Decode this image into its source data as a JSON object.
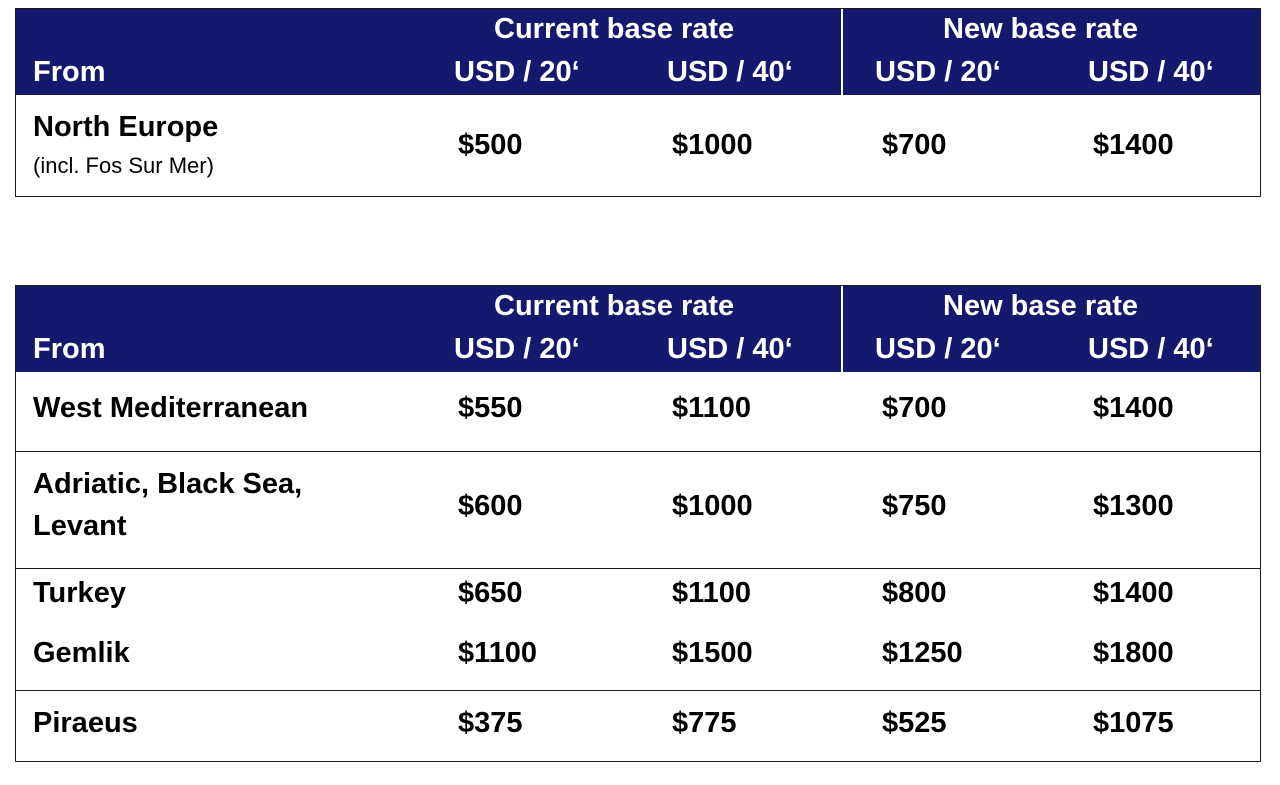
{
  "header": {
    "current_group": "Current base rate",
    "new_group": "New base rate",
    "from": "From",
    "usd20": "USD / 20‘",
    "usd40": "USD / 40‘"
  },
  "table1": {
    "rows": [
      {
        "name": "North Europe",
        "sub": "(incl. Fos Sur Mer)",
        "cur20": "$500",
        "cur40": "$1000",
        "new20": "$700",
        "new40": "$1400"
      }
    ]
  },
  "table2": {
    "rows": [
      {
        "name": "West Mediterranean",
        "cur20": "$550",
        "cur40": "$1100",
        "new20": "$700",
        "new40": "$1400"
      },
      {
        "name_line1": "Adriatic, Black Sea,",
        "name_line2": "Levant",
        "cur20": "$600",
        "cur40": "$1000",
        "new20": "$750",
        "new40": "$1300"
      },
      {
        "name": "Turkey",
        "cur20": "$650",
        "cur40": "$1100",
        "new20": "$800",
        "new40": "$1400"
      },
      {
        "name": "Gemlik",
        "cur20": "$1100",
        "cur40": "$1500",
        "new20": "$1250",
        "new40": "$1800"
      },
      {
        "name": "Piraeus",
        "cur20": "$375",
        "cur40": "$775",
        "new20": "$525",
        "new40": "$1075"
      }
    ]
  }
}
